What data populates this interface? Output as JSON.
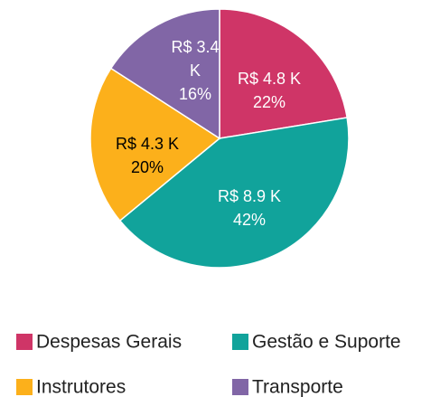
{
  "chart_data": {
    "type": "pie",
    "categories": [
      "Despesas Gerais",
      "Gestão e Suporte",
      "Instrutores",
      "Transporte"
    ],
    "values": [
      4.8,
      8.9,
      4.3,
      3.4
    ],
    "value_labels": [
      "R$ 4.8 K",
      "R$ 8.9 K",
      "R$ 4.3 K",
      "R$ 3.4 K"
    ],
    "percent_labels": [
      "22%",
      "42%",
      "20%",
      "16%"
    ],
    "colors": [
      "#cf3567",
      "#11a39b",
      "#fcb01b",
      "#8166a6"
    ],
    "label_colors": [
      "#ffffff",
      "#ffffff",
      "#000000",
      "#ffffff"
    ],
    "legend": "bottom"
  }
}
